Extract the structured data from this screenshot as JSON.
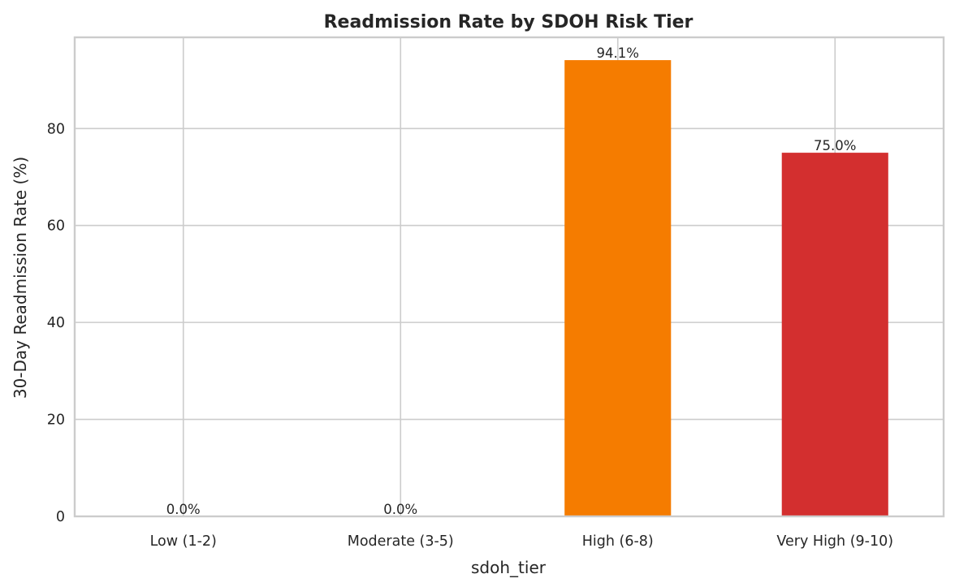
{
  "chart_data": {
    "type": "bar",
    "title": "Readmission Rate by SDOH Risk Tier",
    "xlabel": "sdoh_tier",
    "ylabel": "30-Day Readmission Rate (%)",
    "categories": [
      "Low (1-2)",
      "Moderate (3-5)",
      "High (6-8)",
      "Very High (9-10)"
    ],
    "values": [
      0.0,
      0.0,
      94.1,
      75.0
    ],
    "value_labels": [
      "0.0%",
      "0.0%",
      "94.1%",
      "75.0%"
    ],
    "colors": [
      "#2ca02c",
      "#f5c518",
      "#f57c00",
      "#d32f2f"
    ],
    "yticks": [
      0,
      20,
      40,
      60,
      80
    ],
    "ylim": [
      0,
      98.8
    ],
    "grid": true,
    "legend": "none"
  }
}
